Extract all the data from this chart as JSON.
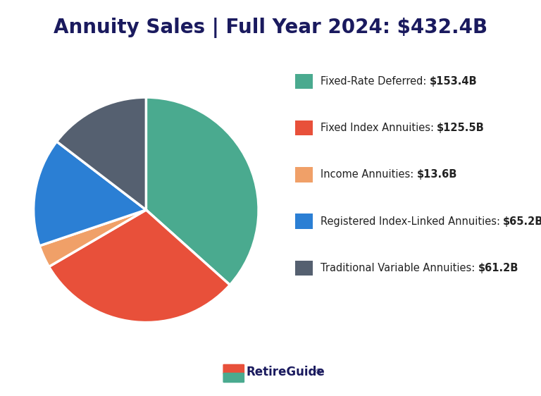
{
  "title": "Annuity Sales | Full Year 2024: $432.4B",
  "title_color": "#1a1a5e",
  "title_fontsize": 20,
  "background_color": "#ffffff",
  "slices": [
    {
      "label": "Fixed-Rate Deferred",
      "value": 153.4,
      "color": "#4aaa8f"
    },
    {
      "label": "Fixed Index Annuities",
      "value": 125.5,
      "color": "#e8503a"
    },
    {
      "label": "Income Annuities",
      "value": 13.6,
      "color": "#f0a068"
    },
    {
      "label": "Registered Index-Linked Annuities",
      "value": 65.2,
      "color": "#2b7fd4"
    },
    {
      "label": "Traditional Variable Annuities",
      "value": 61.2,
      "color": "#556070"
    }
  ],
  "legend_labels_normal": [
    "Fixed-Rate Deferred: ",
    "Fixed Index Annuities: ",
    "Income Annuities: ",
    "Registered Index-Linked Annuities: ",
    "Traditional Variable Annuities: "
  ],
  "legend_labels_bold": [
    "$153.4B",
    "$125.5B",
    "$13.6B",
    "$65.2B",
    "$61.2B"
  ],
  "start_angle": 90,
  "footer_text": "RetireGuide",
  "footer_superscript": "®"
}
